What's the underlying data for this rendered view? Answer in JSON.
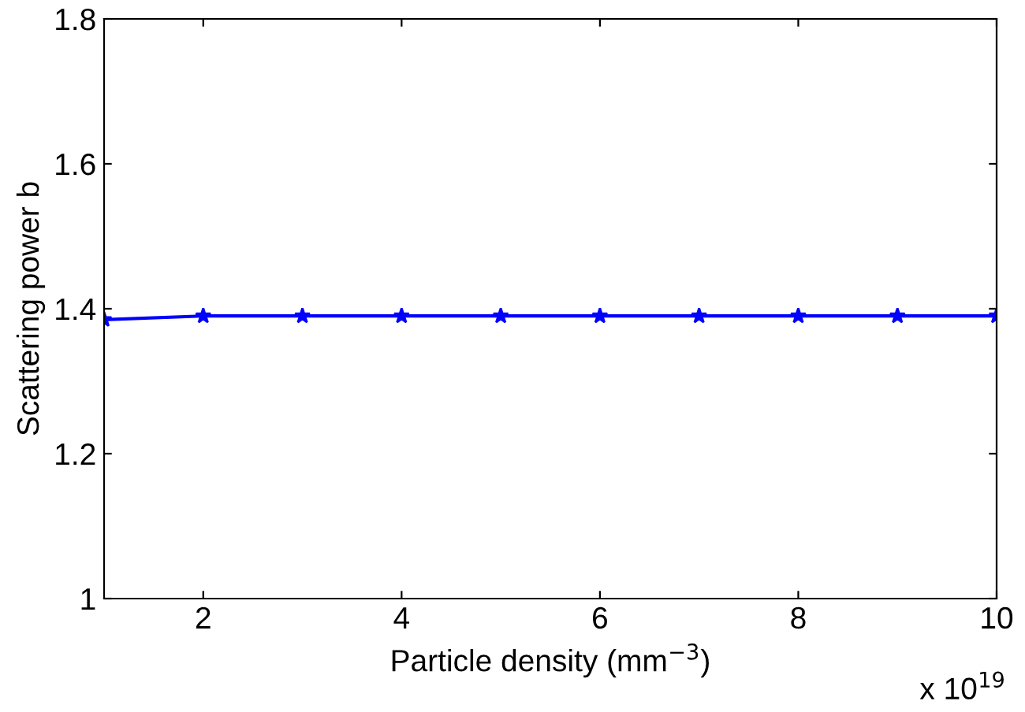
{
  "chart_data": {
    "type": "line",
    "xlabel": "Particle density (mm$^{−3}$)",
    "ylabel": "Scattering power b",
    "x": [
      1,
      2,
      3,
      4,
      5,
      6,
      7,
      8,
      9,
      10
    ],
    "series": [
      {
        "color": "#0000ff",
        "values": [
          1.385,
          1.39,
          1.39,
          1.39,
          1.39,
          1.39,
          1.39,
          1.39,
          1.39,
          1.39
        ]
      }
    ],
    "xlim": [
      1,
      10
    ],
    "xticks": [
      2,
      4,
      6,
      8,
      10
    ],
    "ylim": [
      1,
      1.8
    ],
    "yticks": [
      1,
      1.2,
      1.4,
      1.6,
      1.8
    ],
    "marker": "star",
    "line_style": "solid",
    "grid": false,
    "legend": false,
    "annotations": [
      "x 10$^{19}$"
    ]
  }
}
